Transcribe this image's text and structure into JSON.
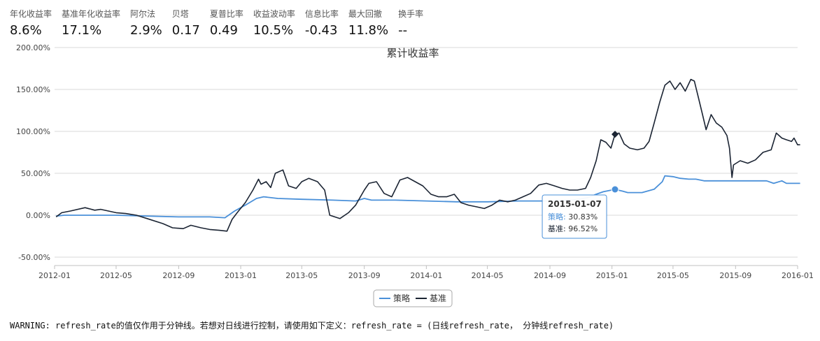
{
  "metrics": [
    {
      "label": "年化收益率",
      "value": "8.6%"
    },
    {
      "label": "基准年化收益率",
      "value": "17.1%"
    },
    {
      "label": "阿尔法",
      "value": "2.9%"
    },
    {
      "label": "贝塔",
      "value": "0.17"
    },
    {
      "label": "夏普比率",
      "value": "0.49"
    },
    {
      "label": "收益波动率",
      "value": "10.5%"
    },
    {
      "label": "信息比率",
      "value": "-0.43"
    },
    {
      "label": "最大回撤",
      "value": "11.8%"
    },
    {
      "label": "换手率",
      "value": "--"
    }
  ],
  "warning": "WARNING: refresh_rate的值仅作用于分钟线。若想对日线进行控制，请使用如下定义：refresh_rate = (日线refresh_rate， 分钟线refresh_rate)",
  "chart_data": {
    "type": "line",
    "title": "累计收益率",
    "xlabel": "",
    "ylabel": "",
    "ylim": [
      -60,
      200
    ],
    "y_ticks": [
      "-50.00%",
      "0.00%",
      "50.00%",
      "100.00%",
      "150.00%",
      "200.00%"
    ],
    "x_ticks": [
      "2012-01",
      "2012-05",
      "2012-09",
      "2013-01",
      "2013-05",
      "2013-09",
      "2014-01",
      "2014-05",
      "2014-09",
      "2015-01",
      "2015-05",
      "2015-09",
      "2016-01"
    ],
    "grid": true,
    "legend_position": "bottom-center",
    "series": [
      {
        "name": "策略",
        "color": "#4a90d9",
        "points": [
          [
            "2012-01-04",
            -1
          ],
          [
            "2012-01-20",
            0
          ],
          [
            "2012-03-01",
            0
          ],
          [
            "2012-05-01",
            0
          ],
          [
            "2012-07-01",
            -1
          ],
          [
            "2012-09-01",
            -2
          ],
          [
            "2012-11-01",
            -2
          ],
          [
            "2012-12-01",
            -3
          ],
          [
            "2012-12-20",
            5
          ],
          [
            "2013-01-10",
            12
          ],
          [
            "2013-02-01",
            20
          ],
          [
            "2013-02-15",
            22
          ],
          [
            "2013-03-15",
            20
          ],
          [
            "2013-05-01",
            19
          ],
          [
            "2013-07-01",
            18
          ],
          [
            "2013-08-15",
            17
          ],
          [
            "2013-09-01",
            20
          ],
          [
            "2013-09-15",
            18
          ],
          [
            "2013-11-01",
            18
          ],
          [
            "2014-01-01",
            17
          ],
          [
            "2014-03-01",
            16
          ],
          [
            "2014-05-01",
            16
          ],
          [
            "2014-07-01",
            17
          ],
          [
            "2014-09-01",
            17
          ],
          [
            "2014-10-15",
            18
          ],
          [
            "2014-11-15",
            21
          ],
          [
            "2014-12-01",
            25
          ],
          [
            "2014-12-15",
            28
          ],
          [
            "2015-01-07",
            30.83
          ],
          [
            "2015-01-20",
            29
          ],
          [
            "2015-02-01",
            27
          ],
          [
            "2015-03-01",
            27
          ],
          [
            "2015-03-25",
            31
          ],
          [
            "2015-04-10",
            40
          ],
          [
            "2015-04-15",
            47
          ],
          [
            "2015-05-01",
            46
          ],
          [
            "2015-05-15",
            44
          ],
          [
            "2015-06-01",
            43
          ],
          [
            "2015-06-15",
            43
          ],
          [
            "2015-07-01",
            41
          ],
          [
            "2015-09-01",
            41
          ],
          [
            "2015-11-01",
            41
          ],
          [
            "2015-11-15",
            38
          ],
          [
            "2015-12-01",
            41
          ],
          [
            "2015-12-10",
            38
          ],
          [
            "2016-01-01",
            38
          ],
          [
            "2016-01-06",
            38
          ]
        ]
      },
      {
        "name": "基准",
        "color": "#1b2433",
        "points": [
          [
            "2012-01-04",
            -2
          ],
          [
            "2012-01-15",
            3
          ],
          [
            "2012-02-01",
            5
          ],
          [
            "2012-03-01",
            9
          ],
          [
            "2012-03-20",
            6
          ],
          [
            "2012-04-01",
            7
          ],
          [
            "2012-05-01",
            3
          ],
          [
            "2012-05-20",
            2
          ],
          [
            "2012-06-10",
            0
          ],
          [
            "2012-07-01",
            -4
          ],
          [
            "2012-08-01",
            -10
          ],
          [
            "2012-08-20",
            -15
          ],
          [
            "2012-09-10",
            -16
          ],
          [
            "2012-09-25",
            -12
          ],
          [
            "2012-10-15",
            -15
          ],
          [
            "2012-11-01",
            -17
          ],
          [
            "2012-11-20",
            -18
          ],
          [
            "2012-12-05",
            -19
          ],
          [
            "2012-12-15",
            -5
          ],
          [
            "2012-12-25",
            3
          ],
          [
            "2013-01-10",
            15
          ],
          [
            "2013-01-25",
            30
          ],
          [
            "2013-02-05",
            43
          ],
          [
            "2013-02-10",
            37
          ],
          [
            "2013-02-20",
            40
          ],
          [
            "2013-03-01",
            33
          ],
          [
            "2013-03-10",
            50
          ],
          [
            "2013-03-25",
            54
          ],
          [
            "2013-04-05",
            35
          ],
          [
            "2013-04-20",
            32
          ],
          [
            "2013-05-01",
            40
          ],
          [
            "2013-05-15",
            44
          ],
          [
            "2013-06-01",
            40
          ],
          [
            "2013-06-15",
            30
          ],
          [
            "2013-06-25",
            0
          ],
          [
            "2013-07-05",
            -2
          ],
          [
            "2013-07-15",
            -4
          ],
          [
            "2013-08-01",
            3
          ],
          [
            "2013-08-15",
            12
          ],
          [
            "2013-09-01",
            30
          ],
          [
            "2013-09-10",
            38
          ],
          [
            "2013-09-25",
            40
          ],
          [
            "2013-10-10",
            26
          ],
          [
            "2013-10-25",
            22
          ],
          [
            "2013-11-10",
            42
          ],
          [
            "2013-11-25",
            45
          ],
          [
            "2013-12-10",
            40
          ],
          [
            "2013-12-25",
            35
          ],
          [
            "2014-01-10",
            25
          ],
          [
            "2014-01-25",
            22
          ],
          [
            "2014-02-10",
            22
          ],
          [
            "2014-02-25",
            25
          ],
          [
            "2014-03-10",
            15
          ],
          [
            "2014-03-25",
            12
          ],
          [
            "2014-04-10",
            10
          ],
          [
            "2014-04-25",
            8
          ],
          [
            "2014-05-10",
            12
          ],
          [
            "2014-05-25",
            18
          ],
          [
            "2014-06-10",
            16
          ],
          [
            "2014-06-25",
            18
          ],
          [
            "2014-07-10",
            22
          ],
          [
            "2014-07-25",
            26
          ],
          [
            "2014-08-10",
            36
          ],
          [
            "2014-08-25",
            38
          ],
          [
            "2014-09-10",
            35
          ],
          [
            "2014-09-25",
            32
          ],
          [
            "2014-10-10",
            30
          ],
          [
            "2014-10-25",
            30
          ],
          [
            "2014-11-10",
            32
          ],
          [
            "2014-11-20",
            45
          ],
          [
            "2014-12-01",
            65
          ],
          [
            "2014-12-10",
            90
          ],
          [
            "2014-12-20",
            87
          ],
          [
            "2014-12-30",
            80
          ],
          [
            "2015-01-07",
            96.52
          ],
          [
            "2015-01-15",
            98
          ],
          [
            "2015-01-25",
            85
          ],
          [
            "2015-02-05",
            80
          ],
          [
            "2015-02-20",
            78
          ],
          [
            "2015-03-05",
            80
          ],
          [
            "2015-03-15",
            88
          ],
          [
            "2015-03-25",
            110
          ],
          [
            "2015-04-05",
            135
          ],
          [
            "2015-04-15",
            155
          ],
          [
            "2015-04-25",
            160
          ],
          [
            "2015-05-05",
            150
          ],
          [
            "2015-05-15",
            158
          ],
          [
            "2015-05-25",
            148
          ],
          [
            "2015-06-05",
            162
          ],
          [
            "2015-06-12",
            160
          ],
          [
            "2015-06-20",
            140
          ],
          [
            "2015-06-28",
            120
          ],
          [
            "2015-07-05",
            102
          ],
          [
            "2015-07-15",
            120
          ],
          [
            "2015-07-25",
            110
          ],
          [
            "2015-08-05",
            105
          ],
          [
            "2015-08-15",
            95
          ],
          [
            "2015-08-20",
            80
          ],
          [
            "2015-08-25",
            45
          ],
          [
            "2015-08-28",
            60
          ],
          [
            "2015-09-10",
            65
          ],
          [
            "2015-09-25",
            62
          ],
          [
            "2015-10-10",
            66
          ],
          [
            "2015-10-25",
            75
          ],
          [
            "2015-11-10",
            78
          ],
          [
            "2015-11-20",
            98
          ],
          [
            "2015-12-01",
            92
          ],
          [
            "2015-12-10",
            90
          ],
          [
            "2015-12-20",
            88
          ],
          [
            "2015-12-25",
            92
          ],
          [
            "2016-01-01",
            84
          ],
          [
            "2016-01-06",
            84
          ]
        ]
      }
    ],
    "tooltip": {
      "date": "2015-01-07",
      "rows": [
        {
          "name": "策略",
          "value": "30.83%"
        },
        {
          "name": "基准",
          "value": "96.52%"
        }
      ]
    }
  }
}
